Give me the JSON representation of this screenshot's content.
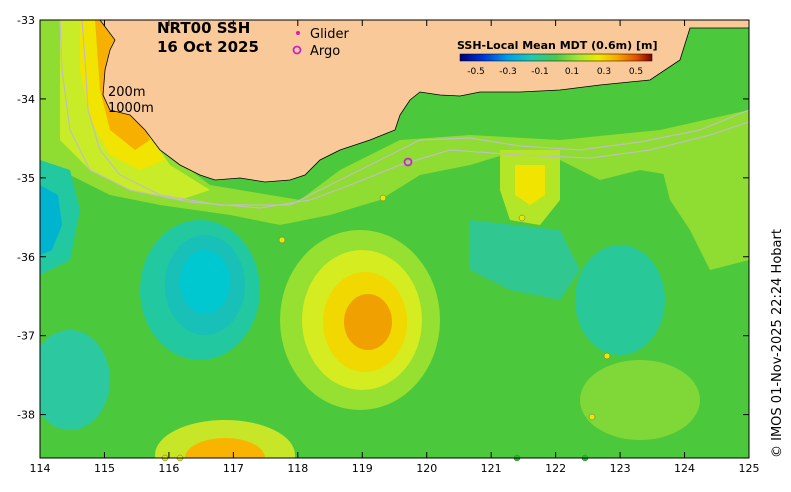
{
  "title": {
    "product": "NRT00 SSH",
    "date": "16 Oct 2025"
  },
  "legend": {
    "glider_label": "Glider",
    "argo_label": "Argo",
    "glider_color": "#e11aa8",
    "argo_color": "#cc22cc"
  },
  "colorbar": {
    "title": "SSH-Local Mean MDT (0.6m) [m]",
    "ticks": [
      "-0.5",
      "-0.3",
      "-0.1",
      "0.1",
      "0.3",
      "0.5"
    ],
    "colors": [
      "#00007a",
      "#0022c8",
      "#0077e6",
      "#00c8e8",
      "#22c8a8",
      "#4cc84c",
      "#96e632",
      "#f0e800",
      "#f8b400",
      "#f07800",
      "#c83200",
      "#7a0000"
    ]
  },
  "contours": {
    "label_200": "200m",
    "label_1000": "1000m"
  },
  "axes": {
    "x_ticks": [
      "114",
      "115",
      "116",
      "117",
      "118",
      "119",
      "120",
      "121",
      "122",
      "123",
      "124",
      "125"
    ],
    "y_ticks": [
      "-33",
      "-34",
      "-35",
      "-36",
      "-37",
      "-38"
    ]
  },
  "credit": "© IMOS 01-Nov-2025 22:24 Hobart",
  "colors": {
    "land": "#f9c99a",
    "ocean_base": "#4cc83c"
  },
  "argo_floats": [
    {
      "lon": 119.73,
      "lat": -34.78
    }
  ]
}
